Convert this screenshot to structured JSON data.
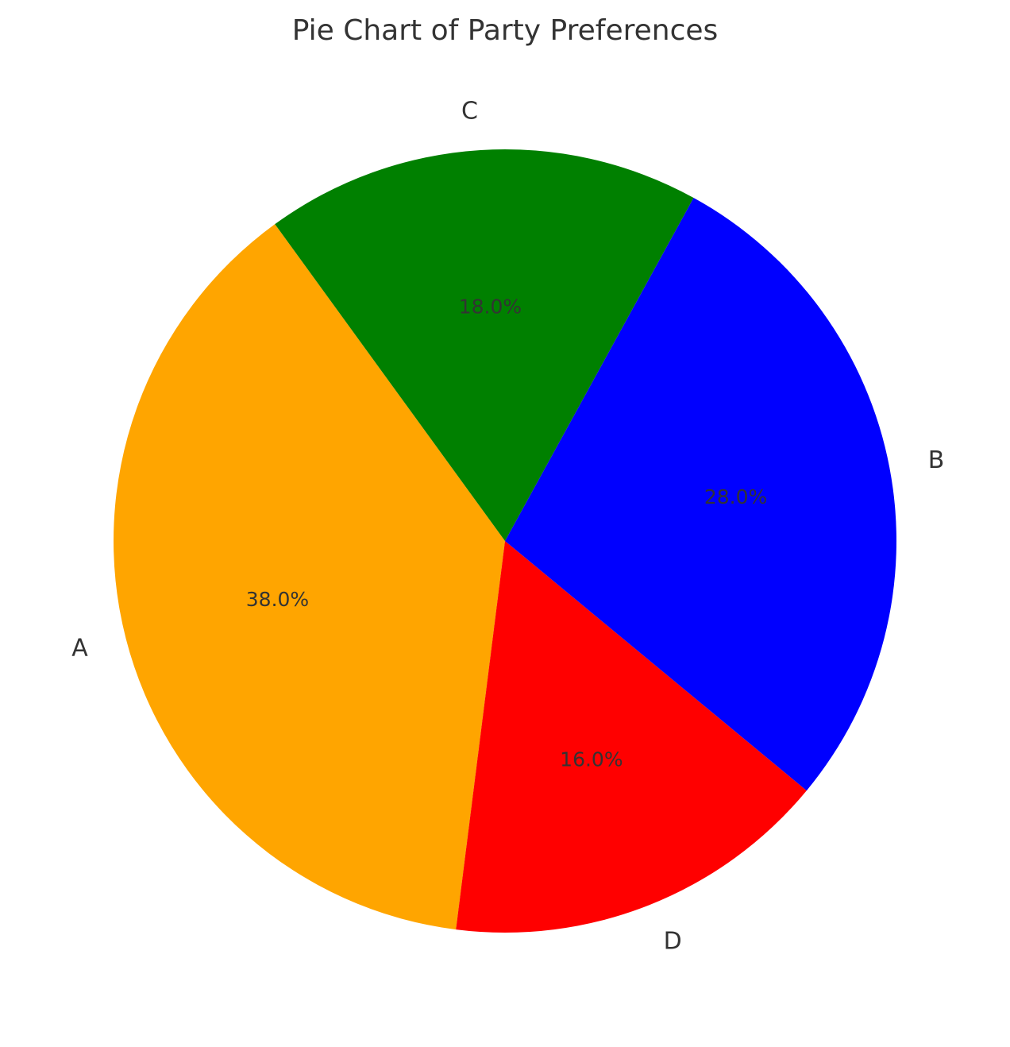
{
  "chart_data": {
    "type": "pie",
    "title": "Pie Chart of Party Preferences",
    "categories": [
      "A",
      "B",
      "C",
      "D"
    ],
    "values": [
      38.0,
      28.0,
      18.0,
      16.0
    ],
    "percent_labels": [
      "38.0%",
      "28.0%",
      "18.0%",
      "16.0%"
    ],
    "colors": [
      "#FFA500",
      "#0000FF",
      "#008000",
      "#FF0000"
    ],
    "slices": [
      {
        "label": "A",
        "value": 38.0,
        "percent_label": "38.0%",
        "color": "#FFA500"
      },
      {
        "label": "D",
        "value": 16.0,
        "percent_label": "16.0%",
        "color": "#FF0000"
      },
      {
        "label": "B",
        "value": 28.0,
        "percent_label": "28.0%",
        "color": "#0000FF"
      },
      {
        "label": "C",
        "value": 18.0,
        "percent_label": "18.0%",
        "color": "#008000"
      }
    ],
    "legend": "none",
    "grid": false
  }
}
